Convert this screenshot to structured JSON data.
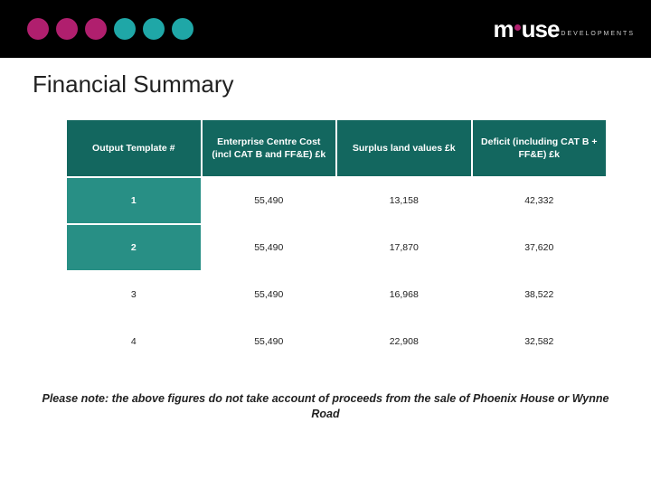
{
  "banner": {
    "dot_colors": [
      "#b01f6e",
      "#b01f6e",
      "#b01f6e",
      "#1fa7a7",
      "#1fa7a7",
      "#1fa7a7"
    ],
    "background": "#000000"
  },
  "logo": {
    "text_before": "m",
    "text_after": "use",
    "bullet_color": "#b01f6e",
    "sub": "DEVELOPMENTS"
  },
  "title": "Financial Summary",
  "table": {
    "header_bg": "#13675f",
    "header_color": "#ffffff",
    "highlight_bg": "#288f85",
    "columns": [
      "Output Template #",
      "Enterprise Centre Cost (incl CAT B and FF&E) £k",
      "Surplus land values £k",
      "Deficit (including CAT B + FF&E) £k"
    ],
    "rows": [
      {
        "template": "1",
        "cost": "55,490",
        "surplus": "13,158",
        "deficit": "42,332",
        "highlight": true
      },
      {
        "template": "2",
        "cost": "55,490",
        "surplus": "17,870",
        "deficit": "37,620",
        "highlight": true
      },
      {
        "template": "3",
        "cost": "55,490",
        "surplus": "16,968",
        "deficit": "38,522",
        "highlight": false
      },
      {
        "template": "4",
        "cost": "55,490",
        "surplus": "22,908",
        "deficit": "32,582",
        "highlight": false
      }
    ]
  },
  "footnote": "Please note: the above figures do not take account of proceeds from the sale of Phoenix House or Wynne Road"
}
